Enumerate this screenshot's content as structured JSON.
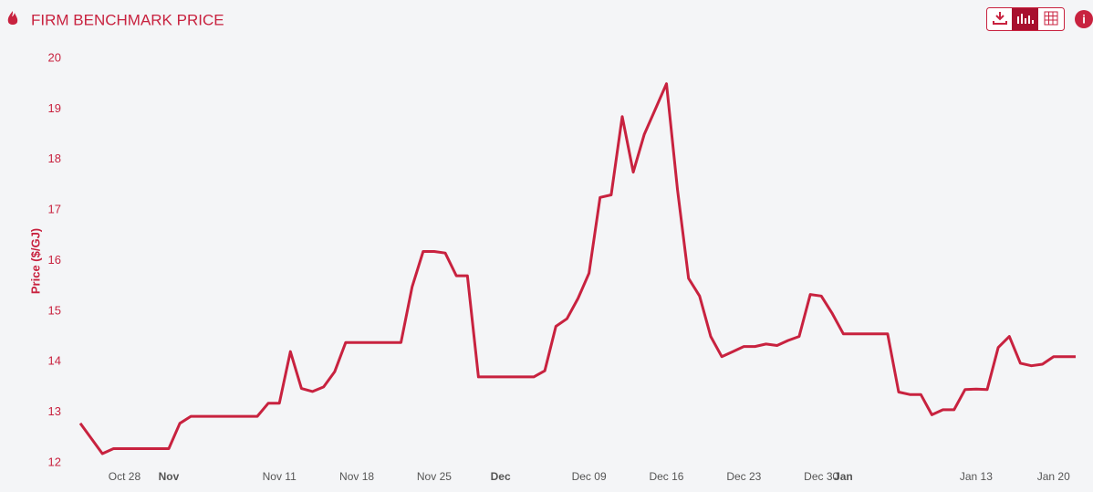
{
  "chart_data": {
    "type": "line",
    "title": "FIRM BENCHMARK PRICE",
    "y_label": "Price ($/GJ)",
    "color": "#c8223f",
    "x": [
      "Oct 24",
      "Oct 25",
      "Oct 26",
      "Oct 27",
      "Oct 28",
      "Oct 29",
      "Oct 30",
      "Oct 31",
      "Nov 01",
      "Nov 02",
      "Nov 03",
      "Nov 04",
      "Nov 05",
      "Nov 06",
      "Nov 07",
      "Nov 08",
      "Nov 09",
      "Nov 10",
      "Nov 11",
      "Nov 12",
      "Nov 13",
      "Nov 14",
      "Nov 15",
      "Nov 16",
      "Nov 17",
      "Nov 18",
      "Nov 19",
      "Nov 20",
      "Nov 21",
      "Nov 22",
      "Nov 23",
      "Nov 24",
      "Nov 25",
      "Nov 26",
      "Nov 27",
      "Nov 28",
      "Nov 29",
      "Nov 30",
      "Dec 01",
      "Dec 02",
      "Dec 03",
      "Dec 04",
      "Dec 05",
      "Dec 06",
      "Dec 07",
      "Dec 08",
      "Dec 09",
      "Dec 10",
      "Dec 11",
      "Dec 12",
      "Dec 13",
      "Dec 14",
      "Dec 15",
      "Dec 16",
      "Dec 17",
      "Dec 18",
      "Dec 19",
      "Dec 20",
      "Dec 21",
      "Dec 22",
      "Dec 23",
      "Dec 24",
      "Dec 25",
      "Dec 26",
      "Dec 27",
      "Dec 28",
      "Dec 29",
      "Dec 30",
      "Dec 31",
      "Jan 01",
      "Jan 02",
      "Jan 03",
      "Jan 04",
      "Jan 05",
      "Jan 06",
      "Jan 07",
      "Jan 08",
      "Jan 09",
      "Jan 10",
      "Jan 11",
      "Jan 12",
      "Jan 13",
      "Jan 14",
      "Jan 15",
      "Jan 16",
      "Jan 17",
      "Jan 18",
      "Jan 19",
      "Jan 20",
      "Jan 21",
      "Jan 22"
    ],
    "values": [
      12.78,
      12.48,
      12.18,
      12.28,
      12.28,
      12.28,
      12.28,
      12.28,
      12.28,
      12.78,
      12.92,
      12.92,
      12.92,
      12.92,
      12.92,
      12.92,
      12.92,
      13.18,
      13.18,
      14.2,
      13.47,
      13.41,
      13.5,
      13.8,
      14.38,
      14.38,
      14.38,
      14.38,
      14.38,
      14.38,
      15.48,
      16.18,
      16.18,
      16.15,
      15.7,
      15.7,
      13.7,
      13.7,
      13.7,
      13.7,
      13.7,
      13.7,
      13.82,
      14.7,
      14.85,
      15.25,
      15.75,
      17.25,
      17.3,
      18.85,
      17.75,
      18.5,
      19.0,
      19.5,
      17.4,
      15.65,
      15.3,
      14.5,
      14.1,
      14.2,
      14.3,
      14.3,
      14.35,
      14.32,
      14.42,
      14.5,
      15.33,
      15.3,
      14.95,
      14.55,
      14.55,
      14.55,
      14.55,
      14.55,
      13.4,
      13.35,
      13.35,
      12.95,
      13.05,
      13.05,
      13.45,
      13.46,
      13.45,
      14.28,
      14.5,
      13.97,
      13.92,
      13.95,
      14.1,
      14.1,
      14.1
    ],
    "xticks": [
      "Oct 28",
      {
        "value": "Nov 01",
        "label": "Nov"
      },
      "Nov 11",
      "Nov 18",
      "Nov 25",
      {
        "value": "Dec 01",
        "label": "Dec"
      },
      "Dec 09",
      "Dec 16",
      "Dec 23",
      "Dec 30",
      {
        "value": "Jan 01",
        "label": "Jan"
      },
      "Jan 13",
      "Jan 20"
    ],
    "ylim": [
      12,
      20
    ],
    "yticks": [
      12,
      13,
      14,
      15,
      16,
      17,
      18,
      19,
      20
    ],
    "grid": false
  }
}
